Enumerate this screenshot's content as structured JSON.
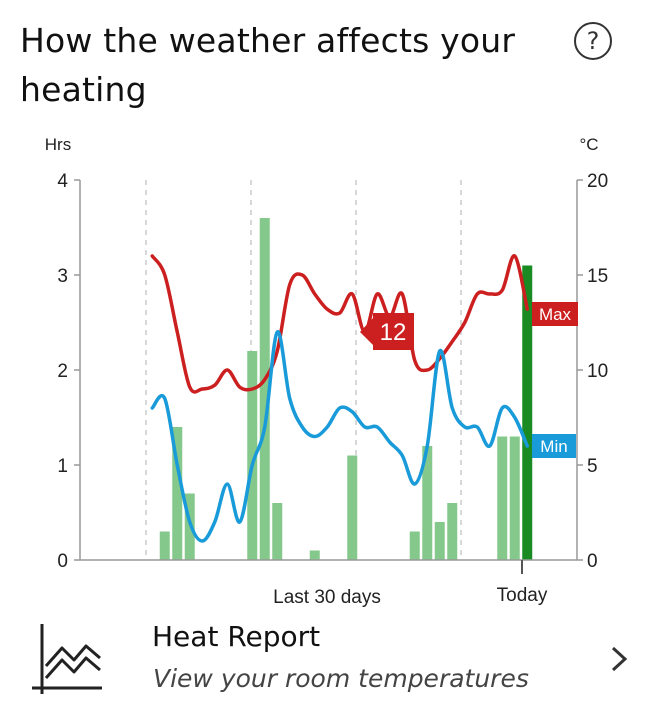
{
  "header": {
    "title": "How the weather affects your heating",
    "help_icon": "question-circle-icon",
    "help_label": "?"
  },
  "chart_data": {
    "type": "bar",
    "left_axis": {
      "label": "Hrs",
      "ticks": [
        0,
        1,
        2,
        3,
        4
      ],
      "range": [
        0,
        4
      ]
    },
    "right_axis": {
      "label": "°C",
      "ticks": [
        0,
        5,
        10,
        15,
        20
      ],
      "range": [
        0,
        20
      ]
    },
    "x_labels": {
      "period": "Last 30 days",
      "today": "Today"
    },
    "grid": "vertical dashed",
    "days": 30,
    "heating_hours": [
      0,
      0.3,
      1.4,
      0.7,
      0,
      0,
      0,
      0,
      2.2,
      3.6,
      0.6,
      0,
      0,
      0.1,
      0,
      0,
      1.1,
      0,
      0,
      0,
      0,
      0.3,
      1.2,
      0.4,
      0.6,
      0,
      0,
      0,
      1.3,
      1.3,
      3.1
    ],
    "heating_hours_today": 3.1,
    "colors": {
      "bar": "#85c88c",
      "bar_today": "#1a8a23",
      "max_line": "#cc1f1f",
      "min_line": "#199ad9",
      "grid": "#cccccc"
    },
    "series": [
      {
        "name": "Max",
        "values": [
          16,
          15,
          12,
          9.1,
          9,
          9.2,
          10,
          9.1,
          9,
          9.5,
          11,
          14.5,
          15,
          14,
          13.2,
          13,
          14,
          12,
          14,
          12.8,
          14,
          10.5,
          10,
          10.6,
          11.5,
          12.5,
          14,
          14,
          14.2,
          16,
          13.2
        ]
      },
      {
        "name": "Min",
        "values": [
          8,
          8.5,
          5,
          2,
          1,
          2,
          4,
          2,
          5,
          7,
          12,
          8.5,
          7,
          6.5,
          7,
          8,
          7.8,
          7,
          7,
          6.2,
          5.5,
          4,
          6,
          11,
          8,
          7,
          7,
          6,
          8,
          7.5,
          6
        ]
      }
    ],
    "callout": {
      "value": "12",
      "series": "Max"
    }
  },
  "footer": {
    "icon": "line-chart-icon",
    "title": "Heat Report",
    "subtitle": "View your room temperatures",
    "chevron_icon": "chevron-right-icon"
  }
}
